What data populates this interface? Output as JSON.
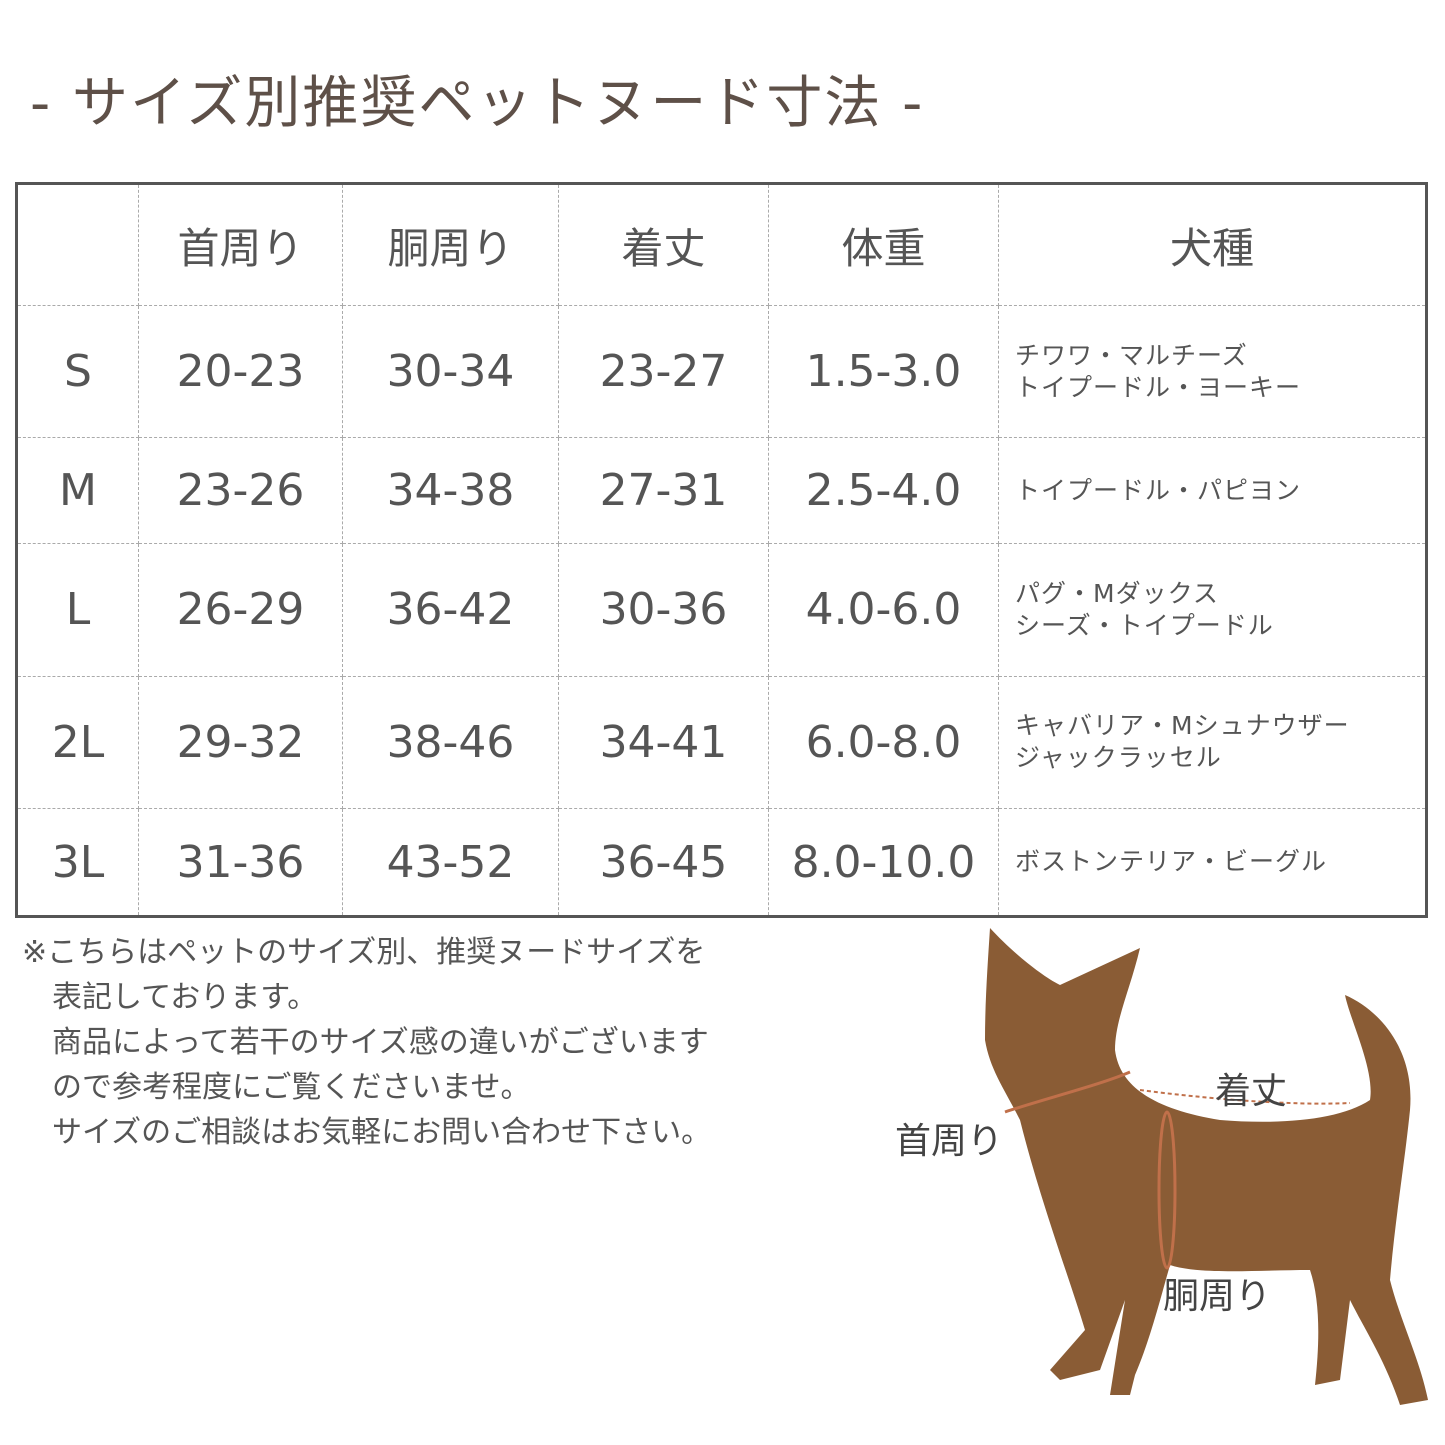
{
  "title": "- サイズ別推奨ペットヌード寸法 -",
  "table": {
    "headers": [
      "",
      "首周り",
      "胴周り",
      "着丈",
      "体重",
      "犬種"
    ],
    "rows": [
      {
        "size": "S",
        "neck": "20-23",
        "chest": "30-34",
        "length": "23-27",
        "weight": "1.5-3.0",
        "breeds": [
          "チワワ・マルチーズ",
          "トイプードル・ヨーキー"
        ]
      },
      {
        "size": "M",
        "neck": "23-26",
        "chest": "34-38",
        "length": "27-31",
        "weight": "2.5-4.0",
        "breeds": [
          "トイプードル・パピヨン"
        ]
      },
      {
        "size": "L",
        "neck": "26-29",
        "chest": "36-42",
        "length": "30-36",
        "weight": "4.0-6.0",
        "breeds": [
          "パグ・Mダックス",
          "シーズ・トイプードル"
        ]
      },
      {
        "size": "2L",
        "neck": "29-32",
        "chest": "38-46",
        "length": "34-41",
        "weight": "6.0-8.0",
        "breeds": [
          "キャバリア・Mシュナウザー",
          "ジャックラッセル"
        ]
      },
      {
        "size": "3L",
        "neck": "31-36",
        "chest": "43-52",
        "length": "36-45",
        "weight": "8.0-10.0",
        "breeds": [
          "ボストンテリア・ビーグル"
        ]
      }
    ]
  },
  "notes": [
    "※こちらはペットのサイズ別、推奨ヌードサイズを",
    "　表記しております。",
    "　商品によって若干のサイズ感の違いがございます",
    "　ので参考程度にご覧くださいませ。",
    "　サイズのご相談はお気軽にお問い合わせ下さい。"
  ],
  "diagram": {
    "length_label": "着丈",
    "neck_label": "首周り",
    "chest_label": "胴周り",
    "dog_color": "#8a5c35",
    "line_color": "#c0704a"
  }
}
